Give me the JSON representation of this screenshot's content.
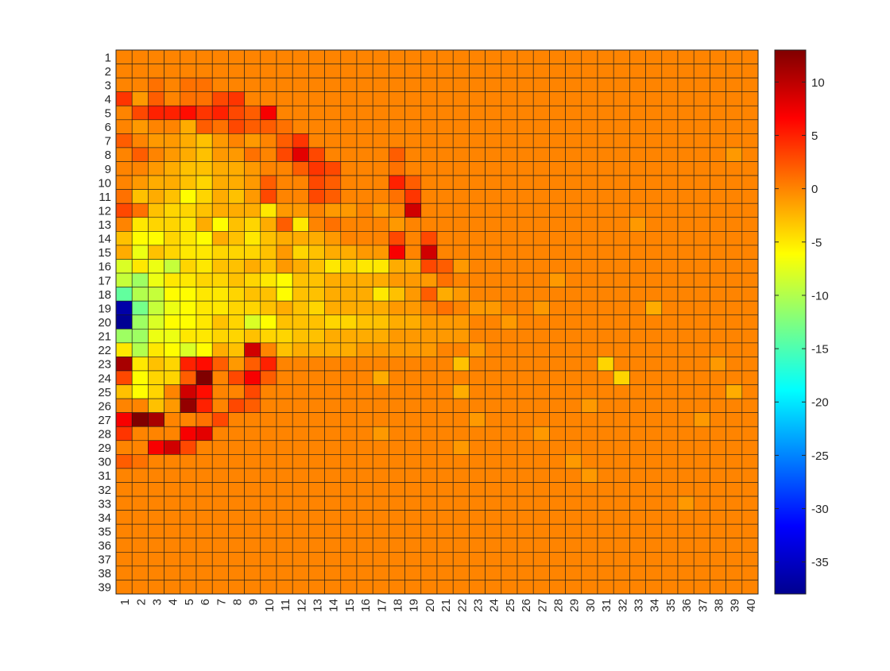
{
  "chart_data": {
    "type": "heatmap",
    "title": "",
    "xlabel": "",
    "ylabel": "",
    "colormap": "jet",
    "colorbar": {
      "range": [
        -38,
        13
      ],
      "ticks": [
        10,
        5,
        0,
        -5,
        -10,
        -15,
        -20,
        -25,
        -30,
        -35
      ]
    },
    "x": [
      "1",
      "2",
      "3",
      "4",
      "5",
      "6",
      "7",
      "8",
      "9",
      "10",
      "11",
      "12",
      "13",
      "14",
      "15",
      "16",
      "17",
      "18",
      "19",
      "20",
      "21",
      "22",
      "23",
      "24",
      "25",
      "26",
      "27",
      "28",
      "29",
      "30",
      "31",
      "32",
      "33",
      "34",
      "35",
      "36",
      "37",
      "38",
      "39",
      "40"
    ],
    "y": [
      "1",
      "2",
      "3",
      "4",
      "5",
      "6",
      "7",
      "8",
      "9",
      "10",
      "11",
      "12",
      "13",
      "14",
      "15",
      "16",
      "17",
      "18",
      "19",
      "20",
      "21",
      "22",
      "23",
      "24",
      "25",
      "26",
      "27",
      "28",
      "29",
      "30",
      "31",
      "32",
      "33",
      "34",
      "35",
      "36",
      "37",
      "38",
      "39"
    ],
    "grid": true,
    "values": [
      [
        0,
        0,
        0,
        0,
        0,
        0,
        0,
        0,
        0,
        0,
        0,
        0,
        0,
        0,
        0,
        0,
        0,
        0,
        0,
        0,
        0,
        0,
        0,
        0,
        0,
        0,
        0,
        0,
        0,
        0,
        0,
        0,
        0,
        0,
        0,
        0,
        0,
        0,
        0,
        0
      ],
      [
        0,
        0,
        0,
        0,
        0,
        0,
        0,
        0,
        0,
        0,
        0,
        0,
        0,
        0,
        0,
        0,
        0,
        0,
        0,
        0,
        0,
        0,
        0,
        0,
        0,
        0,
        0,
        0,
        0,
        0,
        0,
        0,
        0,
        0,
        0,
        0,
        0,
        0,
        0,
        0
      ],
      [
        0,
        0,
        1,
        0,
        1,
        1,
        0,
        0,
        0,
        0,
        0,
        0,
        0,
        0,
        0,
        0,
        0,
        0,
        0,
        0,
        0,
        0,
        0,
        0,
        0,
        0,
        0,
        0,
        0,
        0,
        0,
        0,
        0,
        0,
        0,
        0,
        0,
        0,
        0,
        0
      ],
      [
        4,
        -1,
        2,
        0,
        1,
        1,
        3,
        4,
        0,
        0,
        0,
        0,
        0,
        0,
        0,
        0,
        0,
        0,
        0,
        0,
        0,
        0,
        0,
        0,
        0,
        0,
        0,
        0,
        0,
        0,
        0,
        0,
        0,
        0,
        0,
        0,
        0,
        0,
        0,
        0
      ],
      [
        0,
        3,
        5,
        5,
        6,
        4,
        5,
        3,
        2,
        7,
        0,
        0,
        0,
        0,
        0,
        0,
        0,
        0,
        0,
        0,
        0,
        0,
        0,
        0,
        0,
        0,
        0,
        0,
        0,
        0,
        0,
        0,
        0,
        0,
        0,
        0,
        0,
        0,
        0,
        0
      ],
      [
        0,
        -1,
        0,
        0,
        -2,
        2,
        1,
        3,
        2,
        2,
        1,
        0,
        0,
        0,
        0,
        0,
        0,
        0,
        0,
        0,
        0,
        0,
        0,
        0,
        0,
        0,
        0,
        0,
        0,
        0,
        0,
        0,
        0,
        0,
        0,
        0,
        0,
        0,
        0,
        0
      ],
      [
        2,
        0,
        -1,
        -1,
        -2,
        -3,
        -1,
        0,
        -1,
        0,
        2,
        4,
        0,
        0,
        0,
        0,
        0,
        0,
        0,
        0,
        0,
        0,
        0,
        0,
        0,
        0,
        0,
        0,
        0,
        0,
        0,
        0,
        0,
        0,
        0,
        0,
        0,
        0,
        0,
        0
      ],
      [
        0,
        2,
        0,
        -1,
        -2,
        -3,
        -1,
        -1,
        1,
        0,
        3,
        8,
        3,
        0,
        0,
        0,
        0,
        2,
        0,
        0,
        0,
        0,
        0,
        0,
        0,
        0,
        0,
        0,
        0,
        0,
        0,
        0,
        0,
        0,
        0,
        0,
        0,
        0,
        -1,
        0
      ],
      [
        0,
        0,
        -1,
        -2,
        -3,
        -3,
        -2,
        -2,
        -1,
        0,
        0,
        2,
        4,
        3,
        0,
        0,
        0,
        1,
        0,
        0,
        0,
        0,
        0,
        0,
        0,
        0,
        0,
        0,
        0,
        0,
        0,
        0,
        0,
        0,
        0,
        0,
        0,
        0,
        0,
        0
      ],
      [
        0,
        -1,
        -2,
        -2,
        -3,
        -4,
        -2,
        -2,
        -1,
        2,
        0,
        0,
        3,
        2,
        0,
        0,
        0,
        5,
        2,
        0,
        0,
        0,
        0,
        0,
        0,
        0,
        0,
        0,
        0,
        0,
        0,
        0,
        0,
        0,
        0,
        0,
        0,
        0,
        0,
        0
      ],
      [
        1,
        -3,
        -2,
        -3,
        -6,
        -4,
        -2,
        -3,
        -1,
        3,
        0,
        0,
        3,
        2,
        0,
        0,
        0,
        1,
        4,
        0,
        0,
        0,
        0,
        0,
        0,
        0,
        0,
        0,
        0,
        0,
        0,
        0,
        0,
        0,
        0,
        0,
        0,
        0,
        0,
        0
      ],
      [
        3,
        1,
        -3,
        -4,
        -4,
        -3,
        -2,
        -2,
        -2,
        -5,
        -1,
        -1,
        0,
        -1,
        -1,
        0,
        -1,
        0,
        9,
        0,
        0,
        0,
        0,
        0,
        0,
        0,
        0,
        0,
        0,
        0,
        0,
        0,
        0,
        0,
        0,
        0,
        0,
        0,
        0,
        0
      ],
      [
        0,
        -5,
        -4,
        -4,
        -5,
        -2,
        -6,
        -3,
        -4,
        -2,
        2,
        -5,
        0,
        1,
        0,
        0,
        0,
        -1,
        0,
        0,
        0,
        0,
        0,
        0,
        0,
        0,
        0,
        0,
        0,
        0,
        0,
        0,
        -1,
        0,
        0,
        0,
        0,
        0,
        0,
        0
      ],
      [
        -3,
        -6,
        -6,
        -4,
        -5,
        -6,
        -2,
        -3,
        -5,
        -3,
        -2,
        -2,
        -2,
        -1,
        0,
        0,
        0,
        3,
        0,
        3,
        0,
        0,
        0,
        0,
        0,
        0,
        0,
        0,
        0,
        0,
        0,
        0,
        0,
        0,
        0,
        0,
        0,
        0,
        0,
        0
      ],
      [
        -2,
        -7,
        -3,
        -4,
        -5,
        -5,
        -4,
        -4,
        -4,
        -3,
        -1,
        -4,
        -3,
        -2,
        -2,
        -1,
        -1,
        7,
        0,
        9,
        0,
        0,
        0,
        0,
        0,
        0,
        0,
        0,
        0,
        0,
        0,
        0,
        0,
        0,
        0,
        0,
        0,
        0,
        0,
        0
      ],
      [
        -8,
        -5,
        -7,
        -9,
        -4,
        -5,
        -3,
        -3,
        -2,
        -3,
        -1,
        -2,
        -3,
        -5,
        -4,
        -5,
        -5,
        -2,
        -2,
        3,
        2,
        -1,
        0,
        0,
        0,
        0,
        0,
        0,
        0,
        0,
        0,
        0,
        0,
        0,
        0,
        0,
        0,
        0,
        0,
        0
      ],
      [
        -9,
        -11,
        -7,
        -5,
        -5,
        -4,
        -4,
        -3,
        -4,
        -5,
        -6,
        -3,
        -3,
        -2,
        -2,
        -2,
        -2,
        -1,
        -1,
        -1,
        1,
        0,
        0,
        0,
        0,
        0,
        0,
        -1,
        0,
        0,
        0,
        0,
        0,
        0,
        0,
        0,
        0,
        0,
        0,
        0
      ],
      [
        -14,
        -10,
        -9,
        -6,
        -6,
        -5,
        -5,
        -4,
        -3,
        -3,
        -6,
        -3,
        -3,
        -2,
        -2,
        -2,
        -5,
        -3,
        -1,
        2,
        -2,
        -1,
        0,
        0,
        0,
        0,
        0,
        0,
        0,
        0,
        0,
        0,
        0,
        0,
        0,
        0,
        0,
        0,
        0,
        0
      ],
      [
        -36,
        -13,
        -9,
        -7,
        -6,
        -5,
        -5,
        -4,
        -4,
        -3,
        -2,
        -3,
        -4,
        -2,
        -2,
        -2,
        -2,
        -1,
        -1,
        0,
        1,
        0,
        -1,
        -1,
        0,
        0,
        -1,
        0,
        0,
        0,
        0,
        0,
        0,
        -2,
        0,
        0,
        0,
        0,
        0,
        0
      ],
      [
        -37,
        -11,
        -8,
        -6,
        -6,
        -5,
        -3,
        -4,
        -8,
        -6,
        -3,
        -3,
        -3,
        -4,
        -4,
        -3,
        -3,
        -2,
        -2,
        -1,
        -1,
        -1,
        0,
        0,
        -1,
        0,
        0,
        0,
        0,
        0,
        0,
        0,
        0,
        0,
        0,
        0,
        0,
        0,
        0,
        0
      ],
      [
        -11,
        -11,
        -7,
        -7,
        -5,
        -5,
        -4,
        -4,
        -3,
        -4,
        -4,
        -3,
        -3,
        -2,
        -2,
        -2,
        -2,
        -1,
        -1,
        -1,
        -1,
        -1,
        0,
        0,
        0,
        0,
        0,
        0,
        0,
        0,
        0,
        0,
        0,
        0,
        0,
        0,
        0,
        0,
        0,
        0
      ],
      [
        -5,
        -10,
        -5,
        -6,
        -8,
        -6,
        -2,
        -3,
        9,
        0,
        -3,
        -2,
        -2,
        -2,
        -2,
        -1,
        -1,
        -1,
        -1,
        -1,
        0,
        0,
        -1,
        0,
        0,
        0,
        0,
        0,
        0,
        0,
        0,
        0,
        0,
        0,
        0,
        0,
        0,
        0,
        0,
        0
      ],
      [
        11,
        -5,
        -3,
        -4,
        5,
        6,
        2,
        -1,
        2,
        5,
        0,
        0,
        0,
        0,
        0,
        0,
        0,
        0,
        0,
        0,
        0,
        -3,
        0,
        0,
        0,
        0,
        0,
        0,
        0,
        0,
        -4,
        0,
        0,
        0,
        0,
        0,
        0,
        -1,
        0,
        0
      ],
      [
        3,
        -6,
        -4,
        -4,
        2,
        13,
        0,
        3,
        7,
        2,
        0,
        0,
        0,
        0,
        0,
        0,
        -2,
        0,
        0,
        0,
        0,
        0,
        0,
        0,
        0,
        0,
        0,
        0,
        0,
        0,
        0,
        -4,
        0,
        0,
        0,
        0,
        0,
        0,
        0,
        0
      ],
      [
        -3,
        -6,
        -4,
        0,
        9,
        6,
        0,
        0,
        3,
        0,
        0,
        0,
        0,
        0,
        0,
        0,
        0,
        0,
        0,
        0,
        0,
        -2,
        0,
        0,
        0,
        0,
        0,
        0,
        0,
        0,
        0,
        0,
        0,
        0,
        0,
        0,
        0,
        0,
        -2,
        0
      ],
      [
        0,
        0,
        -3,
        -1,
        12,
        5,
        0,
        3,
        2,
        0,
        0,
        0,
        0,
        0,
        0,
        0,
        0,
        0,
        0,
        0,
        0,
        0,
        0,
        0,
        0,
        0,
        0,
        0,
        0,
        -1,
        0,
        0,
        0,
        0,
        0,
        0,
        0,
        0,
        0,
        0
      ],
      [
        7,
        13,
        11,
        0,
        0,
        1,
        3,
        0,
        0,
        0,
        0,
        0,
        0,
        0,
        0,
        0,
        0,
        0,
        0,
        0,
        0,
        0,
        -1,
        0,
        0,
        0,
        0,
        0,
        0,
        0,
        0,
        0,
        0,
        0,
        0,
        0,
        -1,
        0,
        0,
        0
      ],
      [
        4,
        0,
        0,
        0,
        7,
        8,
        0,
        0,
        0,
        0,
        0,
        0,
        0,
        0,
        0,
        0,
        -1,
        0,
        0,
        0,
        0,
        0,
        0,
        0,
        0,
        0,
        -1,
        0,
        0,
        0,
        0,
        0,
        0,
        0,
        0,
        0,
        0,
        0,
        0,
        0
      ],
      [
        0,
        0,
        7,
        9,
        3,
        0,
        0,
        0,
        0,
        0,
        0,
        0,
        0,
        0,
        0,
        0,
        0,
        0,
        0,
        0,
        0,
        -1,
        0,
        0,
        0,
        0,
        0,
        0,
        0,
        0,
        0,
        0,
        0,
        0,
        0,
        0,
        0,
        0,
        0,
        0
      ],
      [
        2,
        1,
        0,
        0,
        0,
        0,
        0,
        0,
        0,
        0,
        0,
        0,
        0,
        0,
        0,
        0,
        0,
        0,
        0,
        0,
        0,
        0,
        0,
        0,
        0,
        0,
        0,
        0,
        -1,
        0,
        0,
        0,
        0,
        0,
        0,
        0,
        0,
        0,
        0,
        0
      ],
      [
        0,
        0,
        0,
        0,
        0,
        0,
        0,
        0,
        0,
        0,
        0,
        0,
        0,
        0,
        0,
        0,
        0,
        0,
        0,
        0,
        0,
        0,
        0,
        0,
        0,
        0,
        0,
        0,
        0,
        -1,
        0,
        0,
        0,
        0,
        0,
        0,
        0,
        0,
        0,
        0
      ],
      [
        0,
        0,
        0,
        0,
        0,
        0,
        0,
        0,
        0,
        0,
        0,
        0,
        0,
        0,
        0,
        0,
        0,
        0,
        0,
        0,
        0,
        0,
        0,
        0,
        0,
        0,
        0,
        0,
        0,
        0,
        0,
        0,
        0,
        0,
        0,
        0,
        0,
        0,
        0,
        0
      ],
      [
        0,
        0,
        0,
        0,
        0,
        0,
        0,
        0,
        0,
        0,
        0,
        0,
        0,
        0,
        0,
        0,
        0,
        0,
        0,
        0,
        0,
        0,
        0,
        0,
        0,
        0,
        0,
        0,
        0,
        0,
        0,
        0,
        0,
        0,
        0,
        -1,
        0,
        0,
        0,
        0
      ],
      [
        0,
        0,
        0,
        0,
        0,
        0,
        0,
        0,
        0,
        0,
        0,
        0,
        0,
        0,
        0,
        0,
        0,
        0,
        0,
        0,
        0,
        0,
        0,
        0,
        0,
        0,
        0,
        0,
        0,
        0,
        0,
        0,
        0,
        0,
        0,
        0,
        0,
        0,
        0,
        0
      ],
      [
        0,
        0,
        0,
        0,
        0,
        0,
        0,
        0,
        0,
        0,
        0,
        0,
        0,
        0,
        0,
        0,
        0,
        0,
        0,
        0,
        0,
        0,
        0,
        0,
        0,
        0,
        0,
        0,
        0,
        0,
        0,
        0,
        0,
        0,
        0,
        0,
        0,
        0,
        0,
        0
      ],
      [
        0,
        0,
        0,
        0,
        0,
        0,
        0,
        0,
        0,
        0,
        0,
        0,
        0,
        0,
        0,
        0,
        0,
        0,
        0,
        0,
        0,
        0,
        0,
        0,
        0,
        0,
        0,
        0,
        0,
        0,
        0,
        0,
        0,
        0,
        0,
        0,
        0,
        0,
        0,
        0
      ],
      [
        0,
        0,
        0,
        0,
        0,
        0,
        0,
        0,
        0,
        0,
        0,
        0,
        0,
        0,
        0,
        0,
        0,
        0,
        0,
        0,
        0,
        0,
        0,
        0,
        0,
        0,
        0,
        0,
        0,
        0,
        0,
        0,
        0,
        0,
        0,
        0,
        0,
        0,
        0,
        0
      ],
      [
        0,
        0,
        0,
        0,
        0,
        0,
        0,
        0,
        0,
        0,
        0,
        0,
        0,
        0,
        0,
        0,
        0,
        0,
        0,
        0,
        0,
        0,
        0,
        0,
        0,
        0,
        0,
        0,
        0,
        0,
        0,
        0,
        0,
        0,
        0,
        0,
        0,
        0,
        0,
        0
      ],
      [
        0,
        0,
        0,
        0,
        0,
        0,
        0,
        0,
        0,
        0,
        0,
        0,
        0,
        0,
        0,
        0,
        0,
        0,
        0,
        0,
        0,
        0,
        0,
        0,
        0,
        0,
        0,
        0,
        0,
        0,
        0,
        0,
        0,
        0,
        0,
        0,
        0,
        0,
        0,
        0
      ]
    ]
  }
}
